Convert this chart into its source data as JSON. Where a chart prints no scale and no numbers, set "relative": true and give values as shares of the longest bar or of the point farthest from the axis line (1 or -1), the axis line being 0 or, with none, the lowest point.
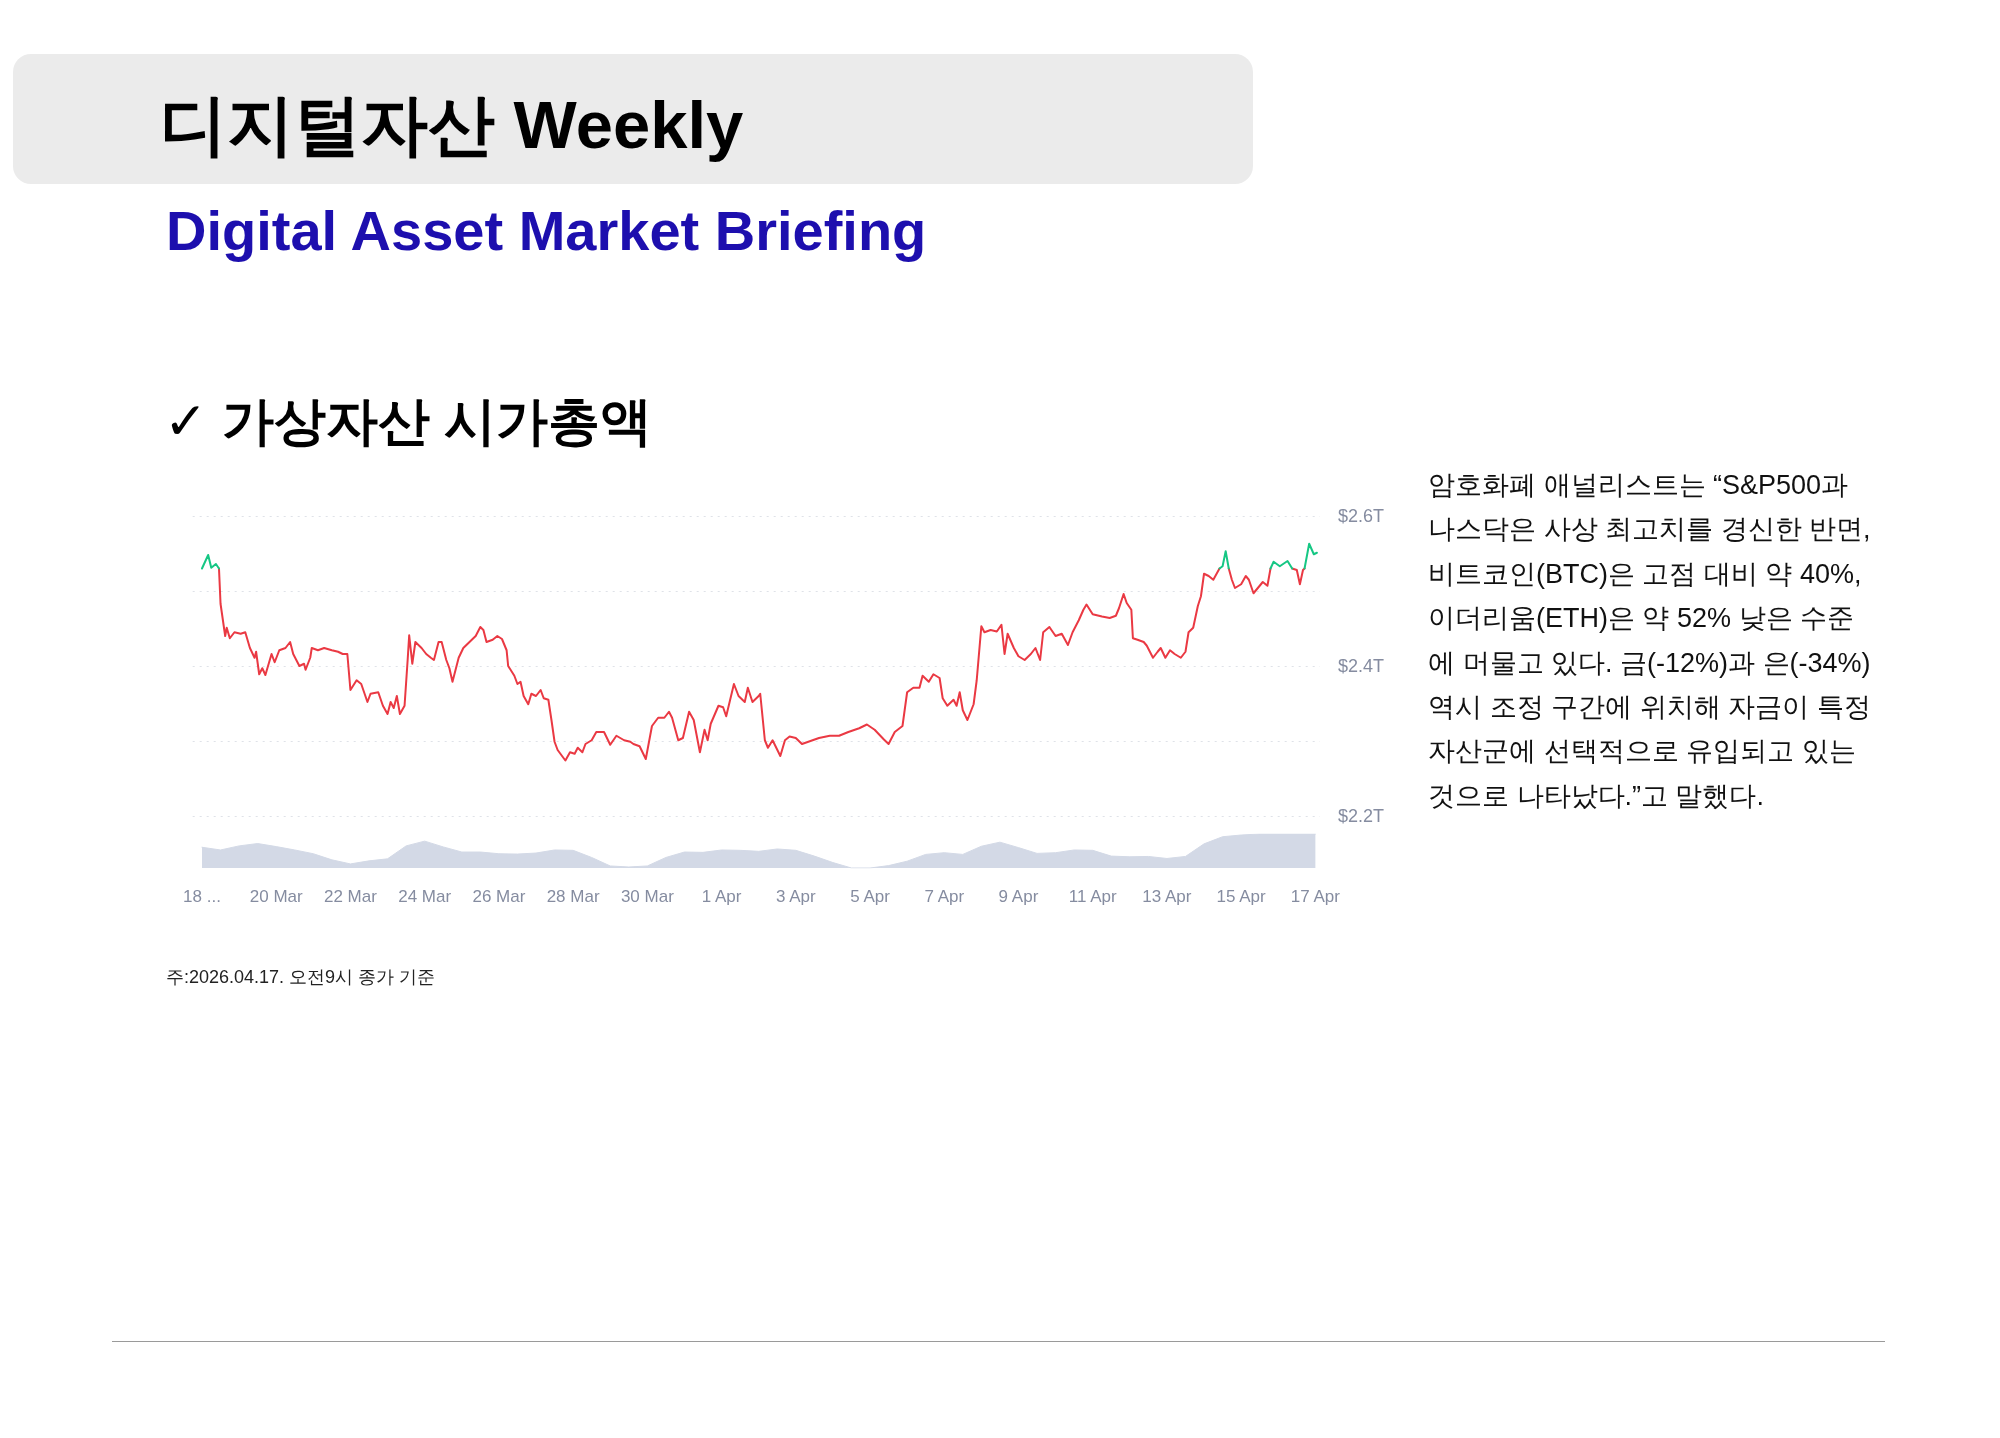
{
  "chart_data": [
    {
      "type": "line",
      "title": "디지털자산 Weekly",
      "subtitle": "Digital Asset Market Briefing",
      "annotations": [
        "✓ 가상자산 시가총액",
        "암호화폐 애널리스트는 “S&P500과 나스닥은 사상 최고치를 경신한 반면, 비트코인(BTC)은 고점 대비 약 40%, 이더리움(ETH)은 약 52% 낮은 수준에 머물고 있다. 금(-12%)과 은(-34%) 역시 조정 구간에 위치해 자금이 특정 자산군에 선택적으로 유입되고 있는 것으로 나타났다.”고 말했다.",
        "주:2026.04.17. 오전9시 종가 기준"
      ],
      "series": [
        {
          "color": "#ea3943",
          "x": [
            "2026-03-18T11:00",
            "2026-03-18T12:00",
            "2026-03-18T15:00",
            "2026-03-18T16:00",
            "2026-03-18T18:00",
            "2026-03-18T21:00",
            "2026-03-19T01:00",
            "2026-03-19T04:00",
            "2026-03-19T07:00",
            "2026-03-19T10:00",
            "2026-03-19T11:00",
            "2026-03-19T13:00",
            "2026-03-19T15:00",
            "2026-03-19T17:00",
            "2026-03-19T21:00",
            "2026-03-19T23:00",
            "2026-03-20T02:00",
            "2026-03-20T06:00",
            "2026-03-20T09:00",
            "2026-03-20T11:00",
            "2026-03-20T15:00",
            "2026-03-20T18:00",
            "2026-03-20T19:00",
            "2026-03-20T22:00",
            "2026-03-20T23:00",
            "2026-03-21T03:00",
            "2026-03-21T07:00",
            "2026-03-21T12:00",
            "2026-03-21T16:00",
            "2026-03-21T19:00",
            "2026-03-21T22:00",
            "2026-03-22T00:00",
            "2026-03-22T04:00",
            "2026-03-22T07:00",
            "2026-03-22T11:00",
            "2026-03-22T13:00",
            "2026-03-22T18:00",
            "2026-03-22T21:00",
            "2026-03-23T00:00",
            "2026-03-23T02:00",
            "2026-03-23T04:00",
            "2026-03-23T06:00",
            "2026-03-23T08:00",
            "2026-03-23T11:00",
            "2026-03-23T13:00",
            "2026-03-23T14:00",
            "2026-03-23T16:00",
            "2026-03-23T18:00",
            "2026-03-23T22:00",
            "2026-03-24T01:00",
            "2026-03-24T04:00",
            "2026-03-24T06:00",
            "2026-03-24T09:00",
            "2026-03-24T11:00",
            "2026-03-24T14:00",
            "2026-03-24T16:00",
            "2026-03-24T18:00",
            "2026-03-24T22:00",
            "2026-03-25T01:00",
            "2026-03-25T05:00",
            "2026-03-25T09:00",
            "2026-03-25T12:00",
            "2026-03-25T14:00",
            "2026-03-25T16:00",
            "2026-03-25T20:00",
            "2026-03-25T23:00",
            "2026-03-26T02:00",
            "2026-03-26T05:00",
            "2026-03-26T06:00",
            "2026-03-26T10:00",
            "2026-03-26T12:00",
            "2026-03-26T14:00",
            "2026-03-26T16:00",
            "2026-03-26T19:00",
            "2026-03-26T21:00",
            "2026-03-27T00:00",
            "2026-03-27T03:00",
            "2026-03-27T05:00",
            "2026-03-27T08:00",
            "2026-03-27T10:00",
            "2026-03-27T12:00",
            "2026-03-27T14:00",
            "2026-03-27T19:00",
            "2026-03-27T22:00",
            "2026-03-28T01:00",
            "2026-03-28T03:00",
            "2026-03-28T06:00",
            "2026-03-28T08:00",
            "2026-03-28T12:00",
            "2026-03-28T15:00",
            "2026-03-28T20:00",
            "2026-03-29T00:00",
            "2026-03-29T04:00",
            "2026-03-29T09:00",
            "2026-03-29T13:00",
            "2026-03-29T15:00",
            "2026-03-29T19:00",
            "2026-03-29T23:00",
            "2026-03-30T03:00",
            "2026-03-30T07:00",
            "2026-03-30T11:00",
            "2026-03-30T14:00",
            "2026-03-30T16:00",
            "2026-03-30T20:00",
            "2026-03-30T23:00",
            "2026-03-31T03:00",
            "2026-03-31T06:00",
            "2026-03-31T10:00",
            "2026-03-31T13:00",
            "2026-03-31T15:00",
            "2026-03-31T17:00",
            "2026-03-31T22:00",
            "2026-04-01T01:00",
            "2026-04-01T03:00",
            "2026-04-01T08:00",
            "2026-04-01T11:00",
            "2026-04-01T15:00",
            "2026-04-01T17:00",
            "2026-04-01T20:00",
            "2026-04-02T00:00",
            "2026-04-02T01:00",
            "2026-04-02T04:00",
            "2026-04-02T06:00",
            "2026-04-02T09:00",
            "2026-04-02T14:00",
            "2026-04-02T17:00",
            "2026-04-02T20:00",
            "2026-04-03T00:00",
            "2026-04-03T04:00",
            "2026-04-03T15:00",
            "2026-04-03T22:00",
            "2026-04-04T04:00",
            "2026-04-04T10:00",
            "2026-04-04T17:00",
            "2026-04-04T22:00",
            "2026-04-05T03:00",
            "2026-04-05T09:00",
            "2026-04-05T12:00",
            "2026-04-05T16:00",
            "2026-04-05T21:00",
            "2026-04-06T00:00",
            "2026-04-06T04:00",
            "2026-04-06T08:00",
            "2026-04-06T10:00",
            "2026-04-06T14:00",
            "2026-04-06T17:00",
            "2026-04-06T21:00",
            "2026-04-06T23:00",
            "2026-04-07T02:00",
            "2026-04-07T06:00",
            "2026-04-07T08:00",
            "2026-04-07T10:00",
            "2026-04-07T12:00",
            "2026-04-07T15:00",
            "2026-04-07T19:00",
            "2026-04-07T21:00",
            "2026-04-08T00:00",
            "2026-04-08T02:00",
            "2026-04-08T06:00",
            "2026-04-08T10:00",
            "2026-04-08T13:00",
            "2026-04-08T15:00",
            "2026-04-08T17:00",
            "2026-04-08T21:00",
            "2026-04-09T00:00",
            "2026-04-09T04:00",
            "2026-04-09T08:00",
            "2026-04-09T11:00",
            "2026-04-09T14:00",
            "2026-04-09T16:00",
            "2026-04-09T20:00",
            "2026-04-10T00:00",
            "2026-04-10T04:00",
            "2026-04-10T08:00",
            "2026-04-10T11:00",
            "2026-04-10T15:00",
            "2026-04-10T18:00",
            "2026-04-10T20:00",
            "2026-04-11T00:00",
            "2026-04-11T06:00",
            "2026-04-11T11:00",
            "2026-04-11T15:00",
            "2026-04-11T17:00",
            "2026-04-11T20:00",
            "2026-04-11T22:00",
            "2026-04-12T01:00",
            "2026-04-12T02:00",
            "2026-04-12T05:00",
            "2026-04-12T09:00",
            "2026-04-12T11:00",
            "2026-04-12T15:00",
            "2026-04-12T18:00",
            "2026-04-12T20:00",
            "2026-04-12T23:00",
            "2026-04-13T02:00",
            "2026-04-13T05:00",
            "2026-04-13T09:00",
            "2026-04-13T12:00",
            "2026-04-13T14:00",
            "2026-04-13T17:00",
            "2026-04-13T20:00",
            "2026-04-13T22:00",
            "2026-04-14T00:00",
            "2026-04-14T03:00",
            "2026-04-14T06:00",
            "2026-04-14T10:00",
            "2026-04-14T12:00",
            "2026-04-14T16:00",
            "2026-04-14T18:00",
            "2026-04-14T20:00",
            "2026-04-15T00:00",
            "2026-04-15T03:00",
            "2026-04-15T05:00",
            "2026-04-15T08:00",
            "2026-04-15T12:00",
            "2026-04-15T14:00",
            "2026-04-15T17:00",
            "2026-04-15T19:00",
            "2026-04-15T21:00",
            "2026-04-16T09:00",
            "2026-04-16T12:00",
            "2026-04-16T14:00",
            "2026-04-16T16:00",
            "2026-04-16T17:00"
          ],
          "values": [
            2.53,
            2.483,
            2.44,
            2.451,
            2.437,
            2.445,
            2.443,
            2.445,
            2.424,
            2.411,
            2.419,
            2.389,
            2.397,
            2.388,
            2.416,
            2.405,
            2.421,
            2.424,
            2.432,
            2.416,
            2.4,
            2.403,
            2.395,
            2.411,
            2.424,
            2.421,
            2.424,
            2.421,
            2.419,
            2.416,
            2.416,
            2.368,
            2.381,
            2.376,
            2.352,
            2.363,
            2.365,
            2.347,
            2.336,
            2.352,
            2.344,
            2.36,
            2.336,
            2.347,
            2.408,
            2.441,
            2.403,
            2.432,
            2.424,
            2.416,
            2.411,
            2.408,
            2.432,
            2.432,
            2.408,
            2.397,
            2.379,
            2.411,
            2.424,
            2.432,
            2.44,
            2.452,
            2.448,
            2.432,
            2.435,
            2.44,
            2.436,
            2.421,
            2.4,
            2.387,
            2.376,
            2.379,
            2.36,
            2.349,
            2.363,
            2.36,
            2.368,
            2.357,
            2.355,
            2.328,
            2.299,
            2.288,
            2.274,
            2.285,
            2.283,
            2.291,
            2.285,
            2.296,
            2.301,
            2.312,
            2.312,
            2.295,
            2.307,
            2.301,
            2.299,
            2.296,
            2.293,
            2.276,
            2.32,
            2.331,
            2.331,
            2.339,
            2.331,
            2.301,
            2.304,
            2.339,
            2.328,
            2.285,
            2.315,
            2.301,
            2.323,
            2.347,
            2.345,
            2.333,
            2.376,
            2.36,
            2.352,
            2.371,
            2.352,
            2.36,
            2.363,
            2.301,
            2.291,
            2.301,
            2.28,
            2.301,
            2.306,
            2.304,
            2.296,
            2.304,
            2.307,
            2.307,
            2.312,
            2.317,
            2.322,
            2.315,
            2.302,
            2.296,
            2.312,
            2.32,
            2.365,
            2.371,
            2.371,
            2.387,
            2.379,
            2.389,
            2.384,
            2.357,
            2.347,
            2.355,
            2.347,
            2.365,
            2.341,
            2.328,
            2.349,
            2.381,
            2.453,
            2.445,
            2.448,
            2.446,
            2.455,
            2.416,
            2.443,
            2.424,
            2.413,
            2.408,
            2.416,
            2.424,
            2.408,
            2.445,
            2.452,
            2.44,
            2.443,
            2.428,
            2.445,
            2.461,
            2.475,
            2.482,
            2.469,
            2.466,
            2.464,
            2.467,
            2.477,
            2.496,
            2.484,
            2.475,
            2.437,
            2.435,
            2.432,
            2.427,
            2.411,
            2.419,
            2.424,
            2.411,
            2.421,
            2.416,
            2.411,
            2.419,
            2.445,
            2.451,
            2.48,
            2.493,
            2.523,
            2.52,
            2.515,
            2.53,
            null,
            2.53,
            2.515,
            2.504,
            2.509,
            2.52,
            2.515,
            2.497,
            2.507,
            2.512,
            2.507,
            2.53,
            null,
            2.53,
            2.528,
            2.509,
            2.528,
            2.53
          ]
        },
        {
          "color": "#16c784",
          "x": [
            "2026-03-18T00:00",
            "2026-03-18T04:00",
            "2026-03-18T06:00",
            "2026-03-18T09:00",
            "2026-03-18T11:00",
            "2026-03-18T12:00",
            "2026-04-14T10:00",
            "2026-04-14T12:00",
            "2026-04-14T14:00",
            "2026-04-14T16:00",
            "2026-04-14T18:00",
            "2026-04-15T19:00",
            "2026-04-15T21:00",
            "2026-04-16T01:00",
            "2026-04-16T06:00",
            "2026-04-16T09:00",
            "2026-04-16T12:00",
            "2026-04-16T17:00",
            "2026-04-16T20:00",
            "2026-04-16T23:00",
            "2026-04-17T01:00"
          ],
          "values": [
            2.53,
            2.548,
            2.531,
            2.536,
            2.53,
            null,
            2.53,
            2.533,
            2.553,
            2.53,
            null,
            2.53,
            2.539,
            2.533,
            2.54,
            2.53,
            null,
            2.53,
            2.563,
            2.549,
            2.551
          ]
        }
      ],
      "xlim": [
        "2026-03-17T18:00",
        "2026-04-17T03:00"
      ],
      "xticks": [
        {
          "value": "2026-03-18",
          "label": "18 ..."
        },
        {
          "value": "2026-03-20",
          "label": "20 Mar"
        },
        {
          "value": "2026-03-22",
          "label": "22 Mar"
        },
        {
          "value": "2026-03-24",
          "label": "24 Mar"
        },
        {
          "value": "2026-03-26",
          "label": "26 Mar"
        },
        {
          "value": "2026-03-28",
          "label": "28 Mar"
        },
        {
          "value": "2026-03-30",
          "label": "30 Mar"
        },
        {
          "value": "2026-04-01",
          "label": "1 Apr"
        },
        {
          "value": "2026-04-03",
          "label": "3 Apr"
        },
        {
          "value": "2026-04-05",
          "label": "5 Apr"
        },
        {
          "value": "2026-04-07",
          "label": "7 Apr"
        },
        {
          "value": "2026-04-09",
          "label": "9 Apr"
        },
        {
          "value": "2026-04-11",
          "label": "11 Apr"
        },
        {
          "value": "2026-04-13",
          "label": "13 Apr"
        },
        {
          "value": "2026-04-15",
          "label": "15 Apr"
        },
        {
          "value": "2026-04-17",
          "label": "17 Apr"
        }
      ],
      "ylim": [
        2.2,
        2.6
      ],
      "yticks": [
        {
          "value": 2.2,
          "label": "$2.2T"
        },
        {
          "value": 2.3,
          "label": null
        },
        {
          "value": 2.4,
          "label": "$2.4T"
        },
        {
          "value": 2.5,
          "label": null
        },
        {
          "value": 2.6,
          "label": "$2.6T"
        }
      ],
      "grid": "y"
    },
    {
      "type": "area",
      "relative": true,
      "color": "#d3d9e6",
      "categories": [
        null,
        null,
        null,
        null,
        null,
        null,
        null,
        null,
        null,
        null,
        null,
        null,
        null,
        null,
        null,
        null,
        null,
        null,
        null,
        null,
        null,
        null,
        null,
        null,
        null,
        null,
        null,
        null,
        null,
        null,
        null,
        null,
        null,
        null,
        null,
        null,
        null,
        null,
        null,
        null,
        null,
        null,
        null,
        null,
        null,
        null,
        null,
        null,
        null,
        null,
        null,
        null,
        null,
        null,
        null,
        null,
        null,
        null,
        null,
        null,
        null
      ],
      "values": [
        0.61,
        0.53,
        0.65,
        0.72,
        0.63,
        0.53,
        0.42,
        0.24,
        0.12,
        0.21,
        0.27,
        0.65,
        0.79,
        0.62,
        0.47,
        0.47,
        0.42,
        0.41,
        0.44,
        0.53,
        0.52,
        0.31,
        0.06,
        0.03,
        0.06,
        0.31,
        0.47,
        0.46,
        0.53,
        0.52,
        0.49,
        0.56,
        0.52,
        0.35,
        0.16,
        0,
        0,
        0.07,
        0.2,
        0.4,
        0.45,
        0.4,
        0.64,
        0.76,
        0.6,
        0.43,
        0.45,
        0.53,
        0.52,
        0.35,
        0.33,
        0.34,
        0.28,
        0.34,
        0.71,
        0.92,
        0.97,
        1,
        1,
        1,
        1
      ]
    }
  ]
}
